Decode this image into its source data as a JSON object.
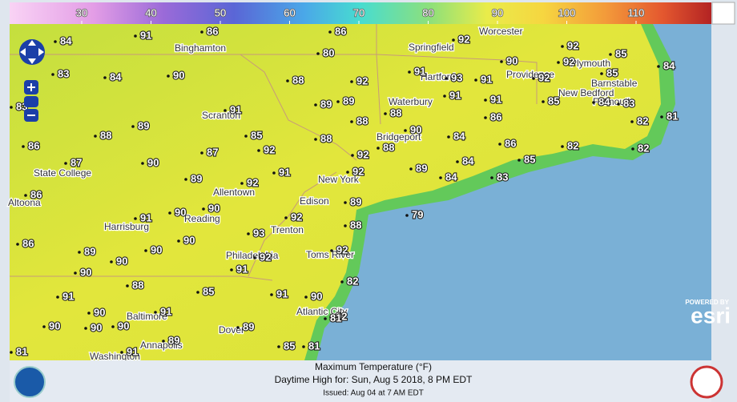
{
  "legend": {
    "ticks": [
      30,
      40,
      50,
      60,
      70,
      80,
      90,
      100,
      110
    ]
  },
  "map": {
    "temperatures": [
      84,
      91,
      86,
      86,
      92,
      92,
      85,
      84,
      80,
      90,
      92,
      92,
      85,
      83,
      84,
      90,
      88,
      92,
      91,
      93,
      91,
      89,
      89,
      88,
      91,
      91,
      85,
      84,
      83,
      83,
      91,
      89,
      88,
      85,
      88,
      88,
      86,
      82,
      81,
      86,
      87,
      92,
      90,
      88,
      84,
      86,
      82,
      82,
      87,
      90,
      92,
      84,
      85,
      89,
      92,
      91,
      92,
      89,
      84,
      83,
      86,
      89,
      79,
      91,
      90,
      90,
      92,
      88,
      86,
      89,
      90,
      90,
      93,
      92,
      92,
      90,
      90,
      91,
      82,
      88,
      85,
      91,
      91,
      90,
      90,
      91,
      90,
      92,
      81,
      90,
      90,
      89,
      89,
      85,
      81,
      91,
      81
    ],
    "cities": [
      "Binghamton",
      "Springfield",
      "Worcester",
      "Plymouth",
      "Hartford",
      "Providence",
      "Barnstable",
      "New Bedford",
      "Waterbury",
      "Falmouth",
      "Scranton",
      "Bridgeport",
      "State College",
      "Allentown",
      "New York",
      "Edison",
      "Altoona",
      "Reading",
      "Harrisburg",
      "Trenton",
      "Philadelphia",
      "Toms River",
      "Baltimore",
      "Atlantic City",
      "Annapolis",
      "Dover",
      "Washington"
    ]
  },
  "attribution": {
    "powered": "POWERED BY",
    "brand": "esri"
  },
  "footer": {
    "title": "Maximum Temperature (°F)",
    "subtitle": "Daytime High for: Sun, Aug  5 2018,  8 PM EDT",
    "issued": "Issued: Aug 04 at 7 AM EDT"
  }
}
